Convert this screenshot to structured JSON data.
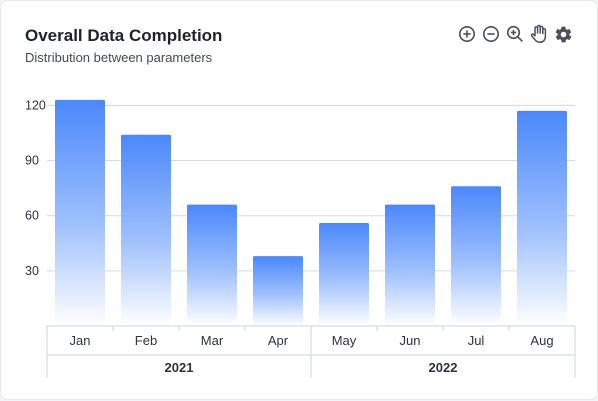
{
  "card": {
    "title": "Overall Data Completion",
    "subtitle": "Distribution between parameters"
  },
  "toolbar": {
    "icons": [
      "zoom-in-icon",
      "zoom-out-icon",
      "zoom-reset-icon",
      "pan-hand-icon",
      "settings-gear-icon"
    ]
  },
  "colors": {
    "bar_top": "#4a88fc",
    "bar_bottom": "#ffffff",
    "grid": "#d6dae1",
    "axis_text": "#2f3340",
    "icon": "#4b5060"
  },
  "chart_data": {
    "type": "bar",
    "categories": [
      "Jan",
      "Feb",
      "Mar",
      "Apr",
      "May",
      "Jun",
      "Jul",
      "Aug"
    ],
    "groups": [
      {
        "label": "2021",
        "categories": [
          "Jan",
          "Feb",
          "Mar",
          "Apr"
        ]
      },
      {
        "label": "2022",
        "categories": [
          "May",
          "Jun",
          "Jul",
          "Aug"
        ]
      }
    ],
    "values": [
      123,
      104,
      66,
      38,
      56,
      66,
      76,
      117
    ],
    "title": "Overall Data Completion",
    "subtitle": "Distribution between parameters",
    "yticks": [
      30,
      60,
      90,
      120
    ],
    "ylim": [
      0,
      130
    ],
    "grid": true,
    "legend": false
  }
}
